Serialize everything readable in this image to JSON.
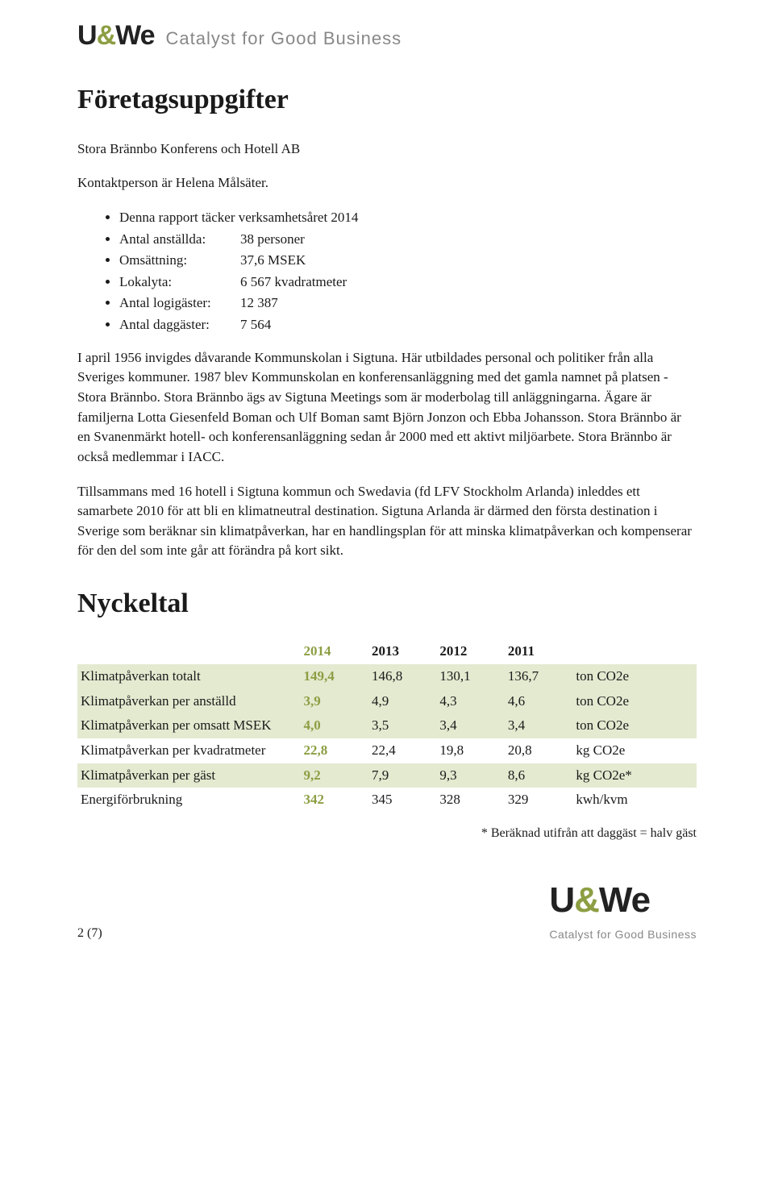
{
  "brand": {
    "name_left": "U",
    "name_amp": "&",
    "name_right": "We",
    "tagline": "Catalyst for Good Business"
  },
  "heading1": "Företagsuppgifter",
  "company_line": "Stora Brännbo Konferens och Hotell AB",
  "contact_line": "Kontaktperson är Helena Målsäter.",
  "bullets": [
    {
      "text": "Denna rapport täcker verksamhetsåret 2014"
    },
    {
      "label": "Antal anställda:",
      "value": "38 personer"
    },
    {
      "label": "Omsättning:",
      "value": "37,6 MSEK"
    },
    {
      "label": "Lokalyta:",
      "value": "6 567 kvadratmeter"
    },
    {
      "label": "Antal logigäster:",
      "value": "12 387"
    },
    {
      "label": "Antal daggäster:",
      "value": "7 564"
    }
  ],
  "para1": "I april 1956 invigdes dåvarande Kommunskolan i Sigtuna. Här utbildades personal och politiker från alla Sveriges kommuner. 1987 blev Kommunskolan en konferensanläggning med det gamla namnet på platsen - Stora Brännbo. Stora Brännbo ägs av Sigtuna Meetings som är moderbolag till anläggningarna. Ägare är familjerna Lotta Giesenfeld Boman och Ulf Boman samt Björn Jonzon och Ebba Johansson. Stora Brännbo är en Svanenmärkt hotell- och konferensanläggning sedan år 2000 med ett aktivt miljöarbete. Stora Brännbo är också medlemmar i IACC.",
  "para2": "Tillsammans med 16 hotell i Sigtuna kommun och Swedavia (fd LFV Stockholm Arlanda) inleddes ett samarbete 2010 för att bli en klimatneutral destination. Sigtuna Arlanda är därmed den första destination i Sverige som beräknar sin klimatpåverkan, har en handlingsplan för att minska klimatpåverkan och kompenserar för den del som inte går att förändra på kort sikt.",
  "heading2": "Nyckeltal",
  "table": {
    "columns": [
      "",
      "2014",
      "2013",
      "2012",
      "2011",
      ""
    ],
    "rows": [
      {
        "label": "Klimatpåverkan totalt",
        "y2014": "149,4",
        "y2013": "146,8",
        "y2012": "130,1",
        "y2011": "136,7",
        "unit": "ton CO2e",
        "shade": true
      },
      {
        "label": "Klimatpåverkan per anställd",
        "y2014": "3,9",
        "y2013": "4,9",
        "y2012": "4,3",
        "y2011": "4,6",
        "unit": "ton CO2e",
        "shade": true
      },
      {
        "label": "Klimatpåverkan per omsatt MSEK",
        "y2014": "4,0",
        "y2013": "3,5",
        "y2012": "3,4",
        "y2011": "3,4",
        "unit": "ton CO2e",
        "shade": true
      },
      {
        "label": "Klimatpåverkan per kvadratmeter",
        "y2014": "22,8",
        "y2013": "22,4",
        "y2012": "19,8",
        "y2011": "20,8",
        "unit": "kg CO2e",
        "shade": false
      },
      {
        "label": "Klimatpåverkan per gäst",
        "y2014": "9,2",
        "y2013": "7,9",
        "y2012": "9,3",
        "y2011": "8,6",
        "unit": "kg CO2e*",
        "shade": true
      },
      {
        "label": "Energiförbrukning",
        "y2014": "342",
        "y2013": "345",
        "y2012": "328",
        "y2011": "329",
        "unit": "kwh/kvm",
        "shade": false
      }
    ],
    "col_widths": [
      "36%",
      "11%",
      "11%",
      "11%",
      "11%",
      "20%"
    ],
    "shade_color": "#e3ead0",
    "accent_color": "#8c9e43"
  },
  "footnote": "* Beräknad utifrån att daggäst = halv gäst",
  "page_number": "2 (7)"
}
